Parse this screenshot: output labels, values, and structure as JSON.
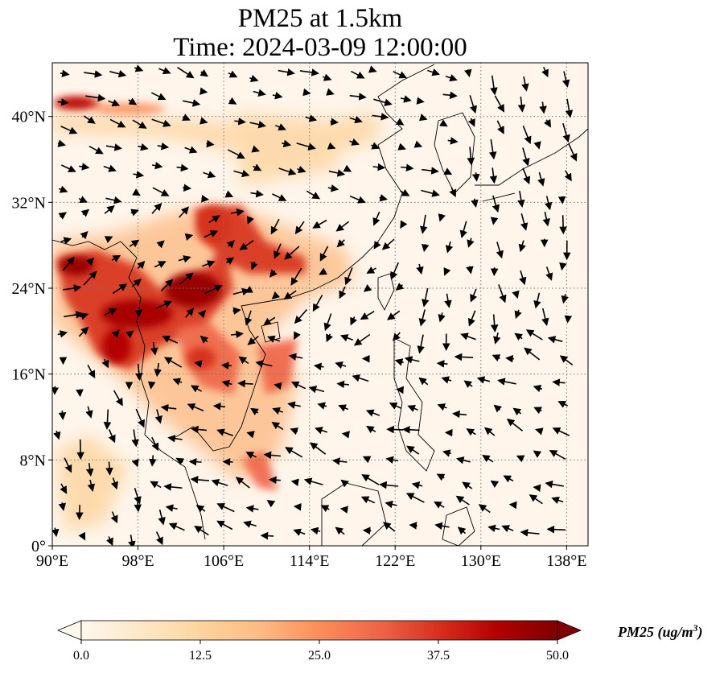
{
  "title": {
    "line1": "PM25 at 1.5km",
    "line2": "Time: 2024-03-09 12:00:00"
  },
  "map": {
    "extent": {
      "lon_min": 90,
      "lon_max": 140,
      "lat_min": 0,
      "lat_max": 45
    },
    "lon_ticks": [
      {
        "value": 90,
        "label": "90°E"
      },
      {
        "value": 98,
        "label": "98°E"
      },
      {
        "value": 106,
        "label": "106°E"
      },
      {
        "value": 114,
        "label": "114°E"
      },
      {
        "value": 122,
        "label": "122°E"
      },
      {
        "value": 130,
        "label": "130°E"
      },
      {
        "value": 138,
        "label": "138°E"
      }
    ],
    "lat_ticks": [
      {
        "value": 0,
        "label": "0°"
      },
      {
        "value": 8,
        "label": "8°N"
      },
      {
        "value": 16,
        "label": "16°N"
      },
      {
        "value": 24,
        "label": "24°N"
      },
      {
        "value": 32,
        "label": "32°N"
      },
      {
        "value": 40,
        "label": "40°N"
      }
    ],
    "gridlines": "dotted",
    "background_color": "#fff5eb",
    "coastline_color": "#000000"
  },
  "colorbar": {
    "cmap": "OrRd",
    "vmin": 0,
    "vmax": 50,
    "extend": "both",
    "ticks": [
      "0.0",
      "12.5",
      "25.0",
      "37.5",
      "50.0"
    ],
    "label_text": "PM25 (ug/m",
    "label_sup": "3",
    "label_close": ")"
  }
}
